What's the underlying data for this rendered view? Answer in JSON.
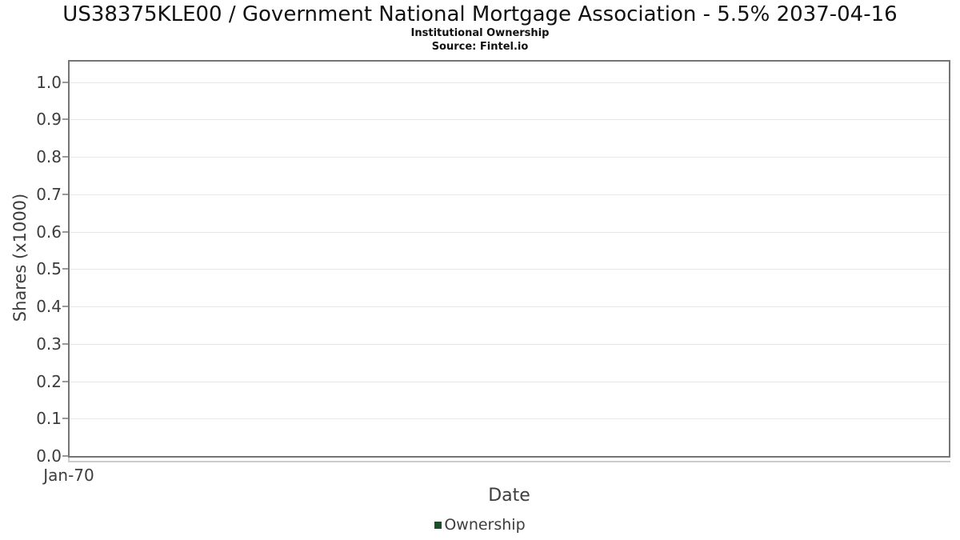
{
  "chart_data": {
    "type": "line",
    "title": "US38375KLE00 / Government National Mortgage Association - 5.5% 2037-04-16",
    "subtitle": "Institutional Ownership",
    "source": "Source: Fintel.io",
    "xlabel": "Date",
    "ylabel": "Shares (x1000)",
    "x_tick_labels": [
      "Jan-70"
    ],
    "y_ticks": [
      {
        "label": "0.0",
        "value": 0.0
      },
      {
        "label": "0.1",
        "value": 0.1
      },
      {
        "label": "0.2",
        "value": 0.2
      },
      {
        "label": "0.3",
        "value": 0.3
      },
      {
        "label": "0.4",
        "value": 0.4
      },
      {
        "label": "0.5",
        "value": 0.5
      },
      {
        "label": "0.6",
        "value": 0.6
      },
      {
        "label": "0.7",
        "value": 0.7
      },
      {
        "label": "0.8",
        "value": 0.8
      },
      {
        "label": "0.9",
        "value": 0.9
      },
      {
        "label": "1.0",
        "value": 1.0
      }
    ],
    "ylim": [
      0,
      1.055
    ],
    "xlim_labels": [
      "Jan-70"
    ],
    "grid": true,
    "legend": {
      "position": "bottom",
      "entries": [
        {
          "label": "Ownership",
          "color": "#1d4d2b"
        }
      ]
    },
    "series": [
      {
        "name": "Ownership",
        "points": []
      }
    ]
  },
  "colors": {
    "background": "#ffffff",
    "title_text": "#111111",
    "label_text": "#3d3d3d",
    "plot_border": "#757575",
    "gridline": "#e7e7e7",
    "axis_line": "#cccccc",
    "tick_mark": "#999999",
    "series_ownership": "#1d4d2b"
  }
}
